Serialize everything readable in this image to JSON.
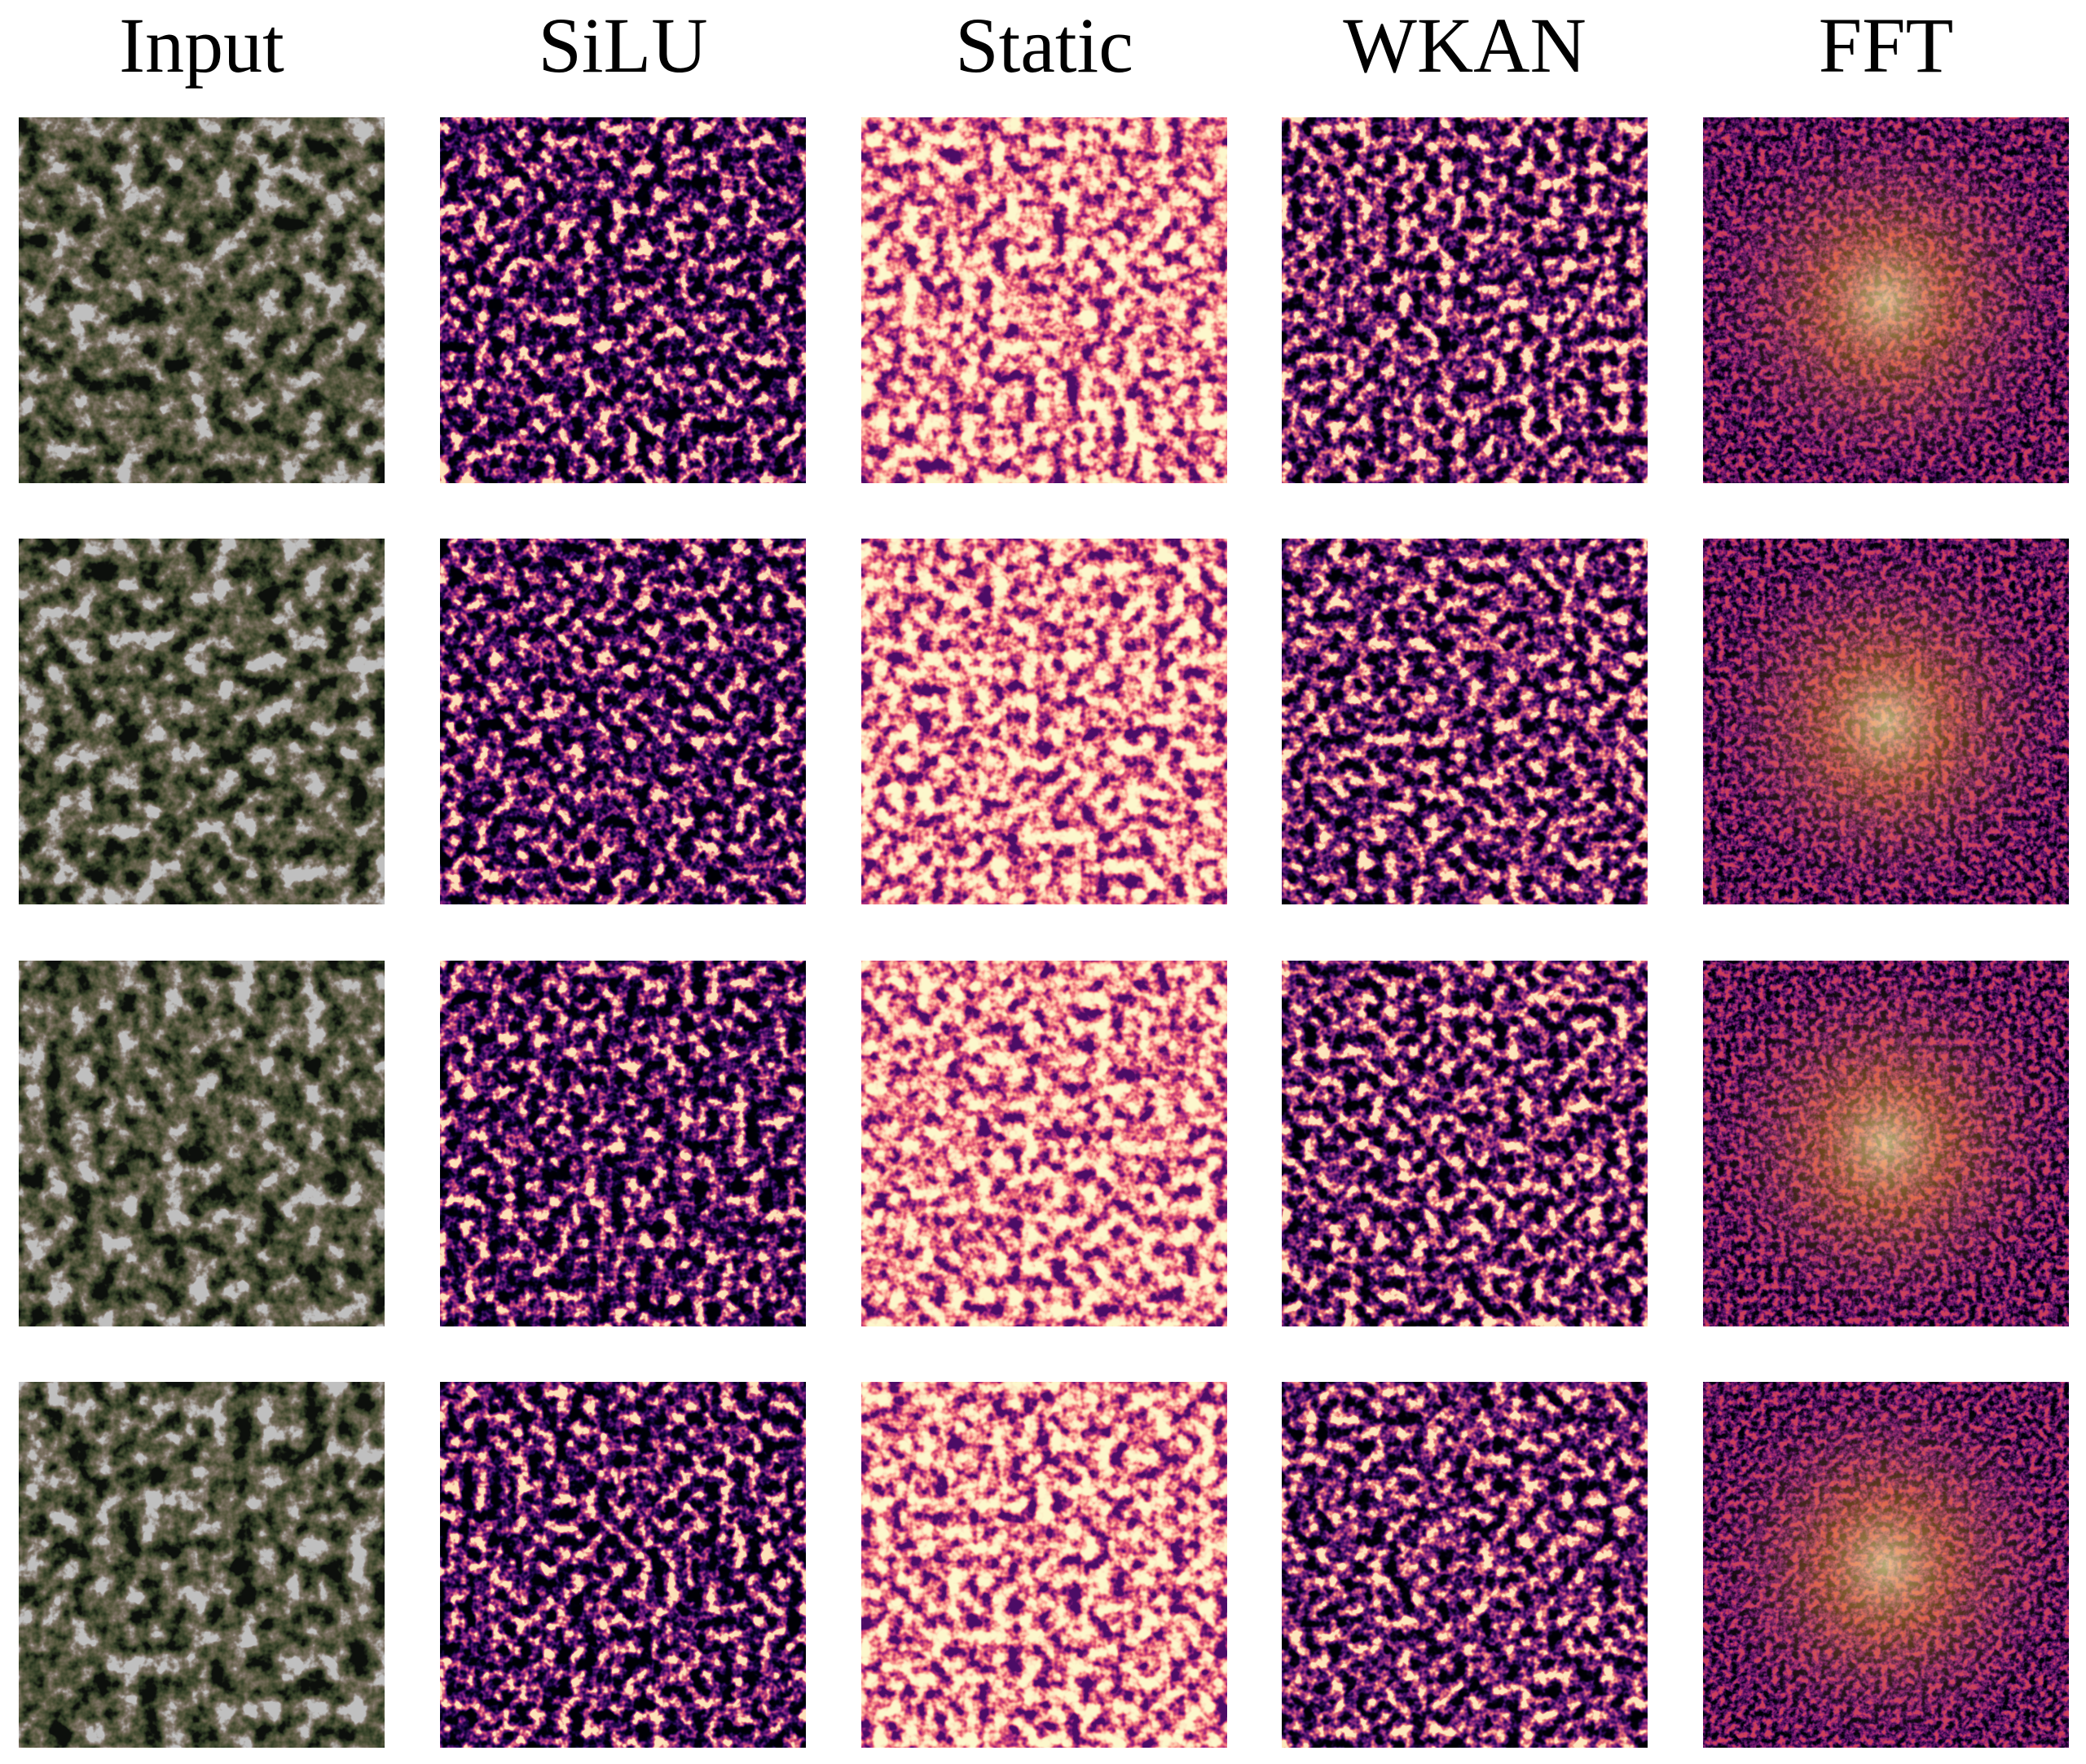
{
  "headers": [
    "Input",
    "SiLU",
    "Static",
    "WKAN",
    "FFT"
  ]
}
